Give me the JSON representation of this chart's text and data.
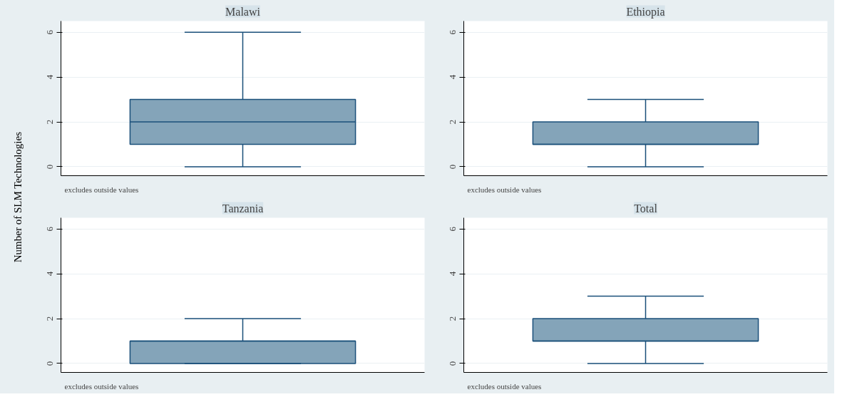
{
  "chart_data": [
    {
      "type": "box",
      "title": "Malawi",
      "ylabel": "Number of SLM Technologies",
      "categories": [
        null
      ],
      "boxes": [
        {
          "low": 0,
          "q1": 1,
          "median": 2,
          "q3": 3,
          "high": 6
        }
      ],
      "color": "#84a4b9",
      "ylim": [
        -0.4,
        6.5
      ],
      "yticks": [
        0,
        2,
        4,
        6
      ],
      "grid": "y",
      "tick_labels": "y",
      "annotations": [
        "excludes outside values"
      ]
    },
    {
      "type": "box",
      "title": "Ethiopia",
      "categories": [
        null
      ],
      "boxes": [
        {
          "low": 0,
          "q1": 1,
          "median": 1,
          "q3": 2,
          "high": 3
        }
      ],
      "color": "#84a4b9",
      "ylim": [
        -0.4,
        6.5
      ],
      "yticks": [
        0,
        2,
        4,
        6
      ],
      "grid": "y",
      "annotations": [
        "excludes outside values"
      ]
    },
    {
      "type": "box",
      "title": "Tanzania",
      "categories": [
        null
      ],
      "boxes": [
        {
          "low": 0,
          "q1": 0,
          "median": 1,
          "q3": 1,
          "high": 2
        }
      ],
      "color": "#84a4b9",
      "ylim": [
        -0.4,
        6.5
      ],
      "yticks": [
        0,
        2,
        4,
        6
      ],
      "grid": "y",
      "tick_labels": "y",
      "annotations": [
        "excludes outside values"
      ]
    },
    {
      "type": "box",
      "title": "Total",
      "categories": [
        null
      ],
      "boxes": [
        {
          "low": 0,
          "q1": 1,
          "median": 1,
          "q3": 2,
          "high": 3
        }
      ],
      "color": "#84a4b9",
      "ylim": [
        -0.4,
        6.5
      ],
      "yticks": [
        0,
        2,
        4,
        6
      ],
      "grid": "y",
      "annotations": [
        "excludes outside values"
      ]
    }
  ]
}
